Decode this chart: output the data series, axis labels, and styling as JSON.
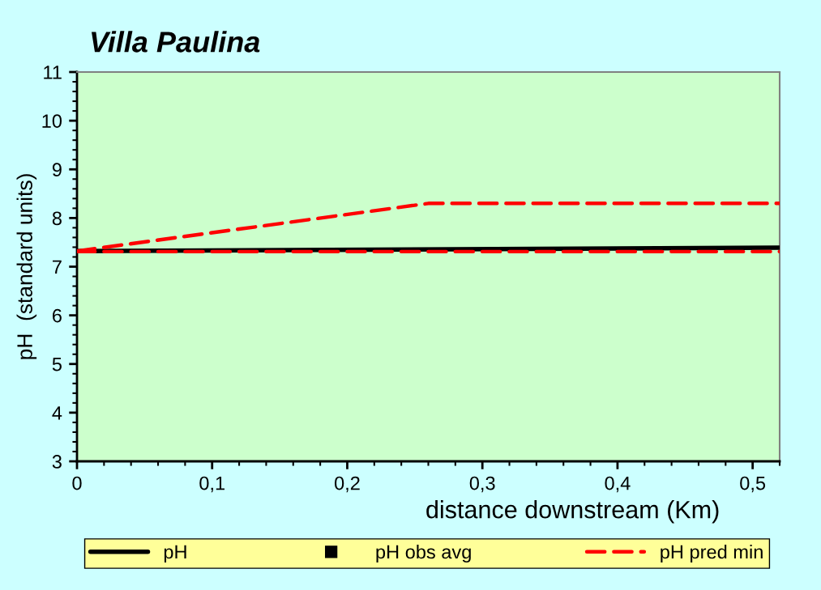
{
  "chart_data": {
    "type": "line",
    "title": "Villa Paulina",
    "xlabel": "distance downstream (Km)",
    "ylabel": "pH  (standard units)",
    "xlim": [
      0,
      0.52
    ],
    "ylim": [
      3,
      11
    ],
    "xticks": [
      0,
      {
        "value": 0.1,
        "label": "0,1"
      },
      {
        "value": 0.2,
        "label": "0,2"
      },
      {
        "value": 0.3,
        "label": "0,3"
      },
      {
        "value": 0.4,
        "label": "0,4"
      },
      {
        "value": 0.5,
        "label": "0,5"
      }
    ],
    "yticks": [
      3,
      4,
      5,
      6,
      7,
      8,
      9,
      10,
      11
    ],
    "grid": false,
    "legend": "bottom",
    "series": [
      {
        "name": "pH",
        "color": "#000000",
        "line_style": "solid",
        "marker": "none",
        "x": [
          0,
          0.52
        ],
        "values": [
          7.32,
          7.39
        ]
      },
      {
        "name": "pH obs avg",
        "type": "scatter",
        "color": "#000000",
        "marker": "square"
      },
      {
        "name": "pH pred min",
        "color": "#ff0000",
        "line_style": "dashed",
        "marker": "none",
        "x": [
          0,
          0.52
        ],
        "values": [
          7.31,
          7.31
        ]
      },
      {
        "color": "#ff0000",
        "line_style": "dashed",
        "marker": "none",
        "x": [
          0,
          0.26,
          0.52
        ],
        "values": [
          7.32,
          8.3,
          8.3
        ]
      }
    ]
  }
}
